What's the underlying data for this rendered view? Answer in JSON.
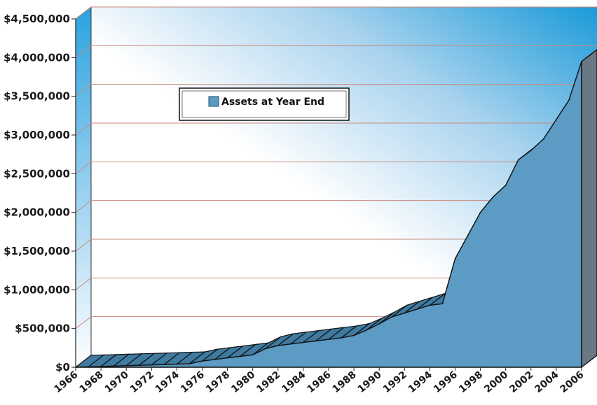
{
  "chart_data": {
    "type": "area",
    "title": "",
    "xlabel": "",
    "ylabel": "",
    "style": "3d",
    "grid": true,
    "legend_position": "top-left",
    "ylim": [
      0,
      4500000
    ],
    "y_ticks": [
      {
        "value": 0,
        "label": "$0"
      },
      {
        "value": 500000,
        "label": "$500,000"
      },
      {
        "value": 1000000,
        "label": "$1,000,000"
      },
      {
        "value": 1500000,
        "label": "$1,500,000"
      },
      {
        "value": 2000000,
        "label": "$2,000,000"
      },
      {
        "value": 2500000,
        "label": "$2,500,000"
      },
      {
        "value": 3000000,
        "label": "$3,000,000"
      },
      {
        "value": 3500000,
        "label": "$3,500,000"
      },
      {
        "value": 4000000,
        "label": "$4,000,000"
      },
      {
        "value": 4500000,
        "label": "$4,500,000"
      }
    ],
    "x_tick_labels": [
      "1966",
      "1968",
      "1970",
      "1972",
      "1974",
      "1976",
      "1978",
      "1980",
      "1982",
      "1984",
      "1986",
      "1988",
      "1990",
      "1992",
      "1994",
      "1996",
      "1998",
      "2000",
      "2002",
      "2004",
      "2006"
    ],
    "series": [
      {
        "name": "Assets at Year End",
        "color": "#5b9bc4",
        "x": [
          1966,
          1967,
          1968,
          1969,
          1970,
          1971,
          1972,
          1973,
          1974,
          1975,
          1976,
          1977,
          1978,
          1979,
          1980,
          1981,
          1982,
          1983,
          1984,
          1985,
          1986,
          1987,
          1988,
          1989,
          1990,
          1991,
          1992,
          1993,
          1994,
          1995,
          1996,
          1997,
          1998,
          1999,
          2000,
          2001,
          2002,
          2003,
          2004,
          2005,
          2006
        ],
        "values": [
          0,
          5000,
          10000,
          15000,
          20000,
          25000,
          30000,
          35000,
          40000,
          45000,
          80000,
          100000,
          120000,
          140000,
          160000,
          240000,
          280000,
          300000,
          320000,
          340000,
          360000,
          380000,
          410000,
          480000,
          560000,
          650000,
          700000,
          750000,
          800000,
          820000,
          1400000,
          1700000,
          2000000,
          2200000,
          2350000,
          2680000,
          2800000,
          2950000,
          3200000,
          3450000,
          3950000
        ]
      }
    ]
  }
}
